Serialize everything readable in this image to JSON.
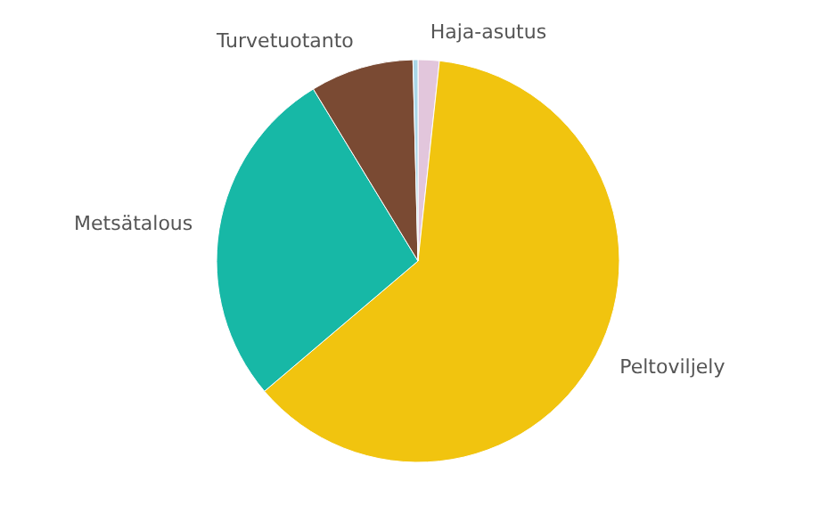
{
  "chart_data": {
    "type": "pie",
    "categories": [
      "Haja-asutus",
      "Peltoviljely",
      "Metsätalous",
      "Turvetuotanto",
      null
    ],
    "values": [
      1.7,
      62.1,
      27.5,
      8.3,
      0.4
    ],
    "colors": [
      "#e2c6dc",
      "#f1c40f",
      "#17b8a6",
      "#7a4a33",
      "#a9d6e8"
    ]
  }
}
